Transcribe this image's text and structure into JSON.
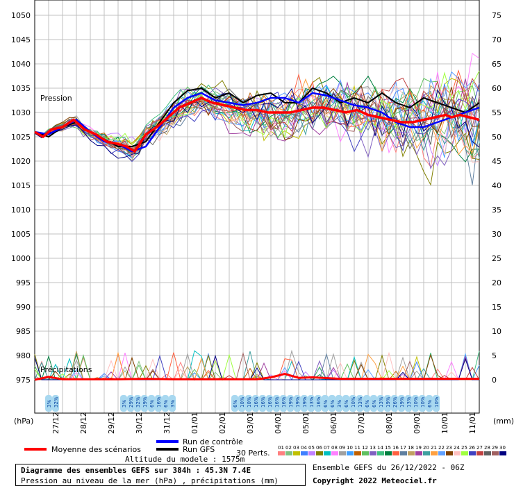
{
  "chart_data": {
    "type": "line",
    "left_axis_unit": "(hPa)",
    "right_axis_unit": "(mm)",
    "pressure_ticks": [
      1050,
      1045,
      1040,
      1035,
      1030,
      1025,
      1020,
      1015,
      1010,
      1005,
      1000,
      995,
      990,
      985,
      980,
      975
    ],
    "precip_ticks": [
      75,
      70,
      65,
      60,
      55,
      50,
      45,
      40,
      35,
      30,
      25,
      20,
      15,
      10,
      5,
      0
    ],
    "ylim_pressure": [
      975,
      1050
    ],
    "ylim_precip": [
      0,
      75
    ],
    "x_dates": [
      "27/12",
      "28/12",
      "29/12",
      "30/12",
      "31/12",
      "01/01",
      "02/01",
      "03/01",
      "04/01",
      "05/01",
      "06/01",
      "07/01",
      "08/01",
      "09/01",
      "10/01",
      "11/01"
    ],
    "label_pression": "Pression",
    "label_precip": "Précipitations",
    "precip_prob_groups": [
      {
        "start_day": 0.5,
        "values": [
          "3%",
          "32%"
        ]
      },
      {
        "start_day": 3.2,
        "values": [
          "3%",
          "29%",
          "32%",
          "19%",
          "6%",
          "16%",
          "6%",
          "3%"
        ]
      },
      {
        "start_day": 7.2,
        "values": [
          "6%",
          "10%",
          "10%",
          "16%",
          "16%",
          "16%",
          "16%",
          "16%",
          "19%",
          "19%",
          "19%",
          "13%",
          "16%",
          "6%",
          "6%",
          "3%",
          "6%",
          "10%",
          "13%",
          "6%",
          "6%",
          "13%",
          "19%",
          "26%",
          "19%",
          "13%",
          "10%",
          "10%",
          "6%",
          "10%"
        ]
      }
    ],
    "mean_pressure": {
      "x": [
        0,
        0.3,
        0.6,
        1,
        1.4,
        1.8,
        2.2,
        2.6,
        3,
        3.3,
        3.6,
        4,
        4.4,
        4.8,
        5.2,
        5.6,
        6,
        6.4,
        6.8,
        7.2,
        7.6,
        8,
        8.4,
        8.8,
        9.2,
        9.6,
        10,
        10.4,
        10.8,
        11.2,
        11.6,
        12,
        12.4,
        12.8,
        13.2,
        13.6,
        14,
        14.4,
        14.8,
        15,
        15.3,
        16
      ],
      "y": [
        1026,
        1025,
        1026.5,
        1027,
        1028.5,
        1026.5,
        1025.5,
        1024,
        1023.5,
        1023,
        1022,
        1025.5,
        1027,
        1029,
        1031,
        1032,
        1033,
        1032,
        1031.5,
        1031,
        1030.5,
        1030.5,
        1030,
        1030,
        1030,
        1030.5,
        1031,
        1031,
        1030.5,
        1030,
        1030.5,
        1029.5,
        1029,
        1028.5,
        1028,
        1028,
        1028.5,
        1029,
        1029.5,
        1029,
        1029.5,
        1028.5
      ]
    },
    "control_pressure": {
      "x": [
        0,
        0.5,
        1,
        1.5,
        2,
        2.5,
        3,
        3.5,
        4,
        4.5,
        5,
        5.5,
        6,
        6.5,
        7,
        7.5,
        8,
        8.5,
        9,
        9.5,
        10,
        10.5,
        11,
        11.5,
        12,
        12.5,
        13,
        13.5,
        14,
        14.5,
        15,
        15.5,
        16
      ],
      "y": [
        1026,
        1025.5,
        1027,
        1028.5,
        1026,
        1024,
        1023.5,
        1022,
        1023,
        1027,
        1031,
        1033,
        1034,
        1032.5,
        1032,
        1031.5,
        1032,
        1033,
        1033,
        1032,
        1034,
        1033.5,
        1032.5,
        1031.5,
        1031,
        1030,
        1028,
        1027,
        1027,
        1028,
        1029,
        1030,
        1031
      ]
    },
    "gfs_pressure": {
      "x": [
        0,
        0.5,
        1,
        1.5,
        2,
        2.5,
        3,
        3.5,
        4,
        4.5,
        5,
        5.5,
        6,
        6.5,
        7,
        7.5,
        8,
        8.5,
        9,
        9.5,
        10,
        10.5,
        11,
        11.5,
        12,
        12.5,
        13,
        13.5,
        14,
        14.5,
        15,
        15.5,
        16
      ],
      "y": [
        1026,
        1025,
        1027,
        1028,
        1026,
        1024.5,
        1023,
        1023,
        1024,
        1028,
        1032,
        1034.5,
        1035,
        1033,
        1034,
        1032,
        1033.5,
        1034,
        1032,
        1032,
        1035,
        1034,
        1032,
        1033,
        1032,
        1034,
        1032,
        1031,
        1033,
        1032,
        1031,
        1030,
        1032
      ]
    },
    "mean_precip": {
      "x": [
        0,
        0.5,
        1,
        2,
        3,
        4,
        5,
        6,
        7,
        8,
        8.5,
        9,
        9.5,
        10,
        11,
        12,
        13,
        14,
        15,
        16
      ],
      "y": [
        0,
        0.6,
        0.1,
        0.1,
        0.1,
        0.2,
        0.1,
        0.1,
        0.1,
        0.1,
        0.5,
        1.2,
        0.4,
        0.5,
        0.2,
        0.2,
        0.2,
        0.2,
        0.2,
        0.2
      ]
    }
  },
  "legend": {
    "control": "Run de contrôle",
    "gfs": "Run GFS",
    "mean": "Moyenne des scénarios",
    "perts": "30 Perts.",
    "pert_numbers": [
      "01",
      "02",
      "03",
      "04",
      "05",
      "06",
      "07",
      "08",
      "09",
      "10",
      "11",
      "12",
      "13",
      "14",
      "15",
      "16",
      "17",
      "18",
      "19",
      "20",
      "21",
      "22",
      "23",
      "24",
      "25",
      "26",
      "27",
      "28",
      "29",
      "30"
    ]
  },
  "colors": {
    "mean": "#ff0000",
    "control": "#0000ff",
    "gfs": "#000000",
    "grid": "#c0c0c0",
    "prob_bubble": "#a8d8f0",
    "perts": [
      "#ff8080",
      "#80c080",
      "#c0c000",
      "#4080ff",
      "#c080ff",
      "#808000",
      "#00c0c0",
      "#ff80ff",
      "#a0a0a0",
      "#40a0ff",
      "#c06000",
      "#60c060",
      "#8060c0",
      "#40c080",
      "#008040",
      "#ff6040",
      "#6080a0",
      "#c0a060",
      "#a040a0",
      "#40a0a0",
      "#ffa040",
      "#60a0ff",
      "#804000",
      "#ffc0c0",
      "#a0ff40",
      "#4040c0",
      "#c04040",
      "#606060",
      "#a06060",
      "#000080"
    ]
  },
  "info": {
    "title": "Diagramme des ensembles GEFS sur 384h : 45.3N 7.4E",
    "subtitle": "Pression au niveau de la mer (hPa) , précipitations (mm)",
    "altitude": "Altitude du modele : 1575m",
    "run": "Ensemble GEFS du 26/12/2022 - 06Z",
    "copyright": "Copyright 2022 Meteociel.fr"
  }
}
